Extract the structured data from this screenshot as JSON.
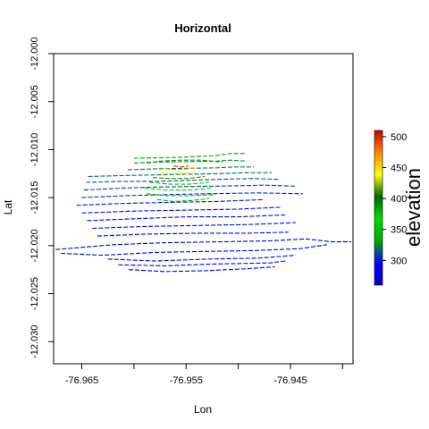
{
  "chart_data": {
    "type": "scatter",
    "title": "Horizontal",
    "xlabel": "Lon",
    "ylabel": "Lat",
    "xlim": [
      -76.9677,
      -76.939
    ],
    "ylim": [
      -12.0323,
      -12.0
    ],
    "x_ticks": [
      -76.965,
      -76.96,
      -76.955,
      -76.95,
      -76.945,
      -76.94
    ],
    "x_tick_labels": [
      "-76.965",
      "",
      "-76.955",
      "",
      "-76.945",
      ""
    ],
    "y_ticks": [
      -12.0,
      -12.005,
      -12.01,
      -12.015,
      -12.02,
      -12.025,
      -12.03
    ],
    "y_tick_labels": [
      "-12.000",
      "-12.005",
      "-12.010",
      "-12.015",
      "-12.020",
      "-12.025",
      "-12.030"
    ],
    "grid": false,
    "legend": {
      "title": "elevation",
      "placement": "right",
      "range": [
        260,
        510
      ],
      "ticks": [
        300,
        350,
        400,
        450,
        500
      ],
      "colors": [
        "#0000cc",
        "#0000ff",
        "#00aa00",
        "#00dd00",
        "#006600",
        "#ffff00",
        "#ff8800",
        "#cc0000"
      ]
    },
    "contour_series": [
      {
        "elevation": 270,
        "polyline": [
          [
            -76.9675,
            -12.0204
          ],
          [
            -76.962,
            -12.0199
          ],
          [
            -76.957,
            -12.0197
          ],
          [
            -76.952,
            -12.0196
          ],
          [
            -76.947,
            -12.0195
          ],
          [
            -76.9435,
            -12.0193
          ],
          [
            -76.941,
            -12.0196
          ],
          [
            -76.9392,
            -12.0196
          ]
        ]
      },
      {
        "elevation": 272,
        "polyline": [
          [
            -76.967,
            -12.0208
          ],
          [
            -76.963,
            -12.021
          ],
          [
            -76.958,
            -12.0207
          ],
          [
            -76.953,
            -12.0206
          ],
          [
            -76.948,
            -12.0205
          ],
          [
            -76.944,
            -12.0203
          ],
          [
            -76.9415,
            -12.0199
          ]
        ]
      },
      {
        "elevation": 274,
        "polyline": [
          [
            -76.9625,
            -12.0214
          ],
          [
            -76.958,
            -12.0216
          ],
          [
            -76.953,
            -12.0214
          ],
          [
            -76.948,
            -12.0213
          ],
          [
            -76.9445,
            -12.021
          ]
        ]
      },
      {
        "elevation": 276,
        "polyline": [
          [
            -76.9615,
            -12.022
          ],
          [
            -76.957,
            -12.0221
          ],
          [
            -76.952,
            -12.0219
          ],
          [
            -76.947,
            -12.0218
          ],
          [
            -76.9455,
            -12.0216
          ]
        ]
      },
      {
        "elevation": 280,
        "polyline": [
          [
            -76.9605,
            -12.0225
          ],
          [
            -76.957,
            -12.0227
          ],
          [
            -76.953,
            -12.0226
          ],
          [
            -76.949,
            -12.0224
          ],
          [
            -76.9465,
            -12.0222
          ]
        ]
      },
      {
        "elevation": 285,
        "polyline": [
          [
            -76.9635,
            -12.019
          ],
          [
            -76.959,
            -12.0188
          ],
          [
            -76.954,
            -12.0187
          ],
          [
            -76.949,
            -12.0187
          ],
          [
            -76.9452,
            -12.0186
          ]
        ]
      },
      {
        "elevation": 288,
        "polyline": [
          [
            -76.964,
            -12.0182
          ],
          [
            -76.959,
            -12.018
          ],
          [
            -76.954,
            -12.0179
          ],
          [
            -76.949,
            -12.0178
          ],
          [
            -76.9445,
            -12.0176
          ]
        ]
      },
      {
        "elevation": 292,
        "polyline": [
          [
            -76.9645,
            -12.0174
          ],
          [
            -76.96,
            -12.0172
          ],
          [
            -76.955,
            -12.017
          ],
          [
            -76.95,
            -12.017
          ],
          [
            -76.9455,
            -12.0168
          ]
        ]
      },
      {
        "elevation": 296,
        "polyline": [
          [
            -76.965,
            -12.0166
          ],
          [
            -76.96,
            -12.0164
          ],
          [
            -76.955,
            -12.0163
          ],
          [
            -76.95,
            -12.0162
          ],
          [
            -76.946,
            -12.016
          ]
        ]
      },
      {
        "elevation": 300,
        "polyline": [
          [
            -76.9655,
            -12.0158
          ],
          [
            -76.961,
            -12.0156
          ],
          [
            -76.957,
            -12.0155
          ],
          [
            -76.952,
            -12.0154
          ],
          [
            -76.9475,
            -12.0152
          ]
        ]
      },
      {
        "elevation": 305,
        "polyline": [
          [
            -76.965,
            -12.015
          ],
          [
            -76.961,
            -12.0148
          ],
          [
            -76.9575,
            -12.0147
          ],
          [
            -76.953,
            -12.0146
          ],
          [
            -76.948,
            -12.0145
          ],
          [
            -76.9438,
            -12.0146
          ]
        ]
      },
      {
        "elevation": 310,
        "polyline": [
          [
            -76.9648,
            -12.0142
          ],
          [
            -76.961,
            -12.014
          ],
          [
            -76.958,
            -12.0139
          ],
          [
            -76.952,
            -12.0138
          ],
          [
            -76.9475,
            -12.0137
          ],
          [
            -76.9445,
            -12.0138
          ]
        ]
      },
      {
        "elevation": 315,
        "polyline": [
          [
            -76.9646,
            -12.0134
          ],
          [
            -76.961,
            -12.0133
          ],
          [
            -76.9575,
            -12.0133
          ],
          [
            -76.952,
            -12.0131
          ],
          [
            -76.9485,
            -12.013
          ],
          [
            -76.9462,
            -12.0131
          ]
        ]
      },
      {
        "elevation": 318,
        "polyline": [
          [
            -76.9644,
            -12.0128
          ],
          [
            -76.961,
            -12.0127
          ],
          [
            -76.952,
            -12.0125
          ],
          [
            -76.9492,
            -12.0124
          ],
          [
            -76.9468,
            -12.0124
          ]
        ]
      },
      {
        "elevation": 322,
        "polyline": [
          [
            -76.9606,
            -12.0121
          ],
          [
            -76.958,
            -12.012
          ],
          [
            -76.952,
            -12.0119
          ],
          [
            -76.9505,
            -12.0118
          ],
          [
            -76.9485,
            -12.0118
          ]
        ]
      },
      {
        "elevation": 326,
        "polyline": [
          [
            -76.96,
            -12.0114
          ],
          [
            -76.958,
            -12.0113
          ],
          [
            -76.952,
            -12.0112
          ],
          [
            -76.9508,
            -12.0111
          ],
          [
            -76.9492,
            -12.0112
          ]
        ]
      },
      {
        "elevation": 330,
        "polyline": [
          [
            -76.96,
            -12.0109
          ],
          [
            -76.9555,
            -12.0108
          ],
          [
            -76.952,
            -12.0106
          ],
          [
            -76.9508,
            -12.0104
          ],
          [
            -76.9492,
            -12.0104
          ]
        ]
      },
      {
        "elevation": 335,
        "polyline": [
          [
            -76.9578,
            -12.0152
          ],
          [
            -76.9562,
            -12.0154
          ],
          [
            -76.9545,
            -12.0153
          ],
          [
            -76.9528,
            -12.0151
          ]
        ]
      },
      {
        "elevation": 345,
        "polyline": [
          [
            -76.9588,
            -12.0146
          ],
          [
            -76.9568,
            -12.0148
          ],
          [
            -76.9548,
            -12.0148
          ],
          [
            -76.9522,
            -12.0147
          ]
        ]
      },
      {
        "elevation": 360,
        "polyline": [
          [
            -76.959,
            -12.014
          ],
          [
            -76.957,
            -12.0142
          ],
          [
            -76.9545,
            -12.0142
          ],
          [
            -76.9525,
            -12.014
          ]
        ]
      },
      {
        "elevation": 375,
        "polyline": [
          [
            -76.9585,
            -12.0134
          ],
          [
            -76.9565,
            -12.0136
          ],
          [
            -76.9548,
            -12.0136
          ],
          [
            -76.9528,
            -12.0134
          ]
        ]
      },
      {
        "elevation": 390,
        "polyline": [
          [
            -76.9588,
            -12.0114
          ],
          [
            -76.9575,
            -12.0112
          ],
          [
            -76.9555,
            -12.0111
          ],
          [
            -76.9535,
            -12.0111
          ],
          [
            -76.9515,
            -12.0113
          ]
        ]
      },
      {
        "elevation": 410,
        "polyline": [
          [
            -76.9582,
            -12.0129
          ],
          [
            -76.9565,
            -12.013
          ],
          [
            -76.9548,
            -12.013
          ],
          [
            -76.9532,
            -12.0128
          ]
        ]
      },
      {
        "elevation": 440,
        "polyline": [
          [
            -76.9575,
            -12.0124
          ],
          [
            -76.9562,
            -12.0125
          ],
          [
            -76.9548,
            -12.0124
          ],
          [
            -76.9538,
            -12.0123
          ]
        ]
      },
      {
        "elevation": 470,
        "polyline": [
          [
            -76.957,
            -12.012
          ],
          [
            -76.9558,
            -12.0121
          ],
          [
            -76.9548,
            -12.012
          ],
          [
            -76.954,
            -12.0119
          ]
        ]
      },
      {
        "elevation": 500,
        "polyline": [
          [
            -76.9562,
            -12.0117
          ],
          [
            -76.9555,
            -12.0118
          ],
          [
            -76.9548,
            -12.0117
          ]
        ]
      }
    ]
  }
}
